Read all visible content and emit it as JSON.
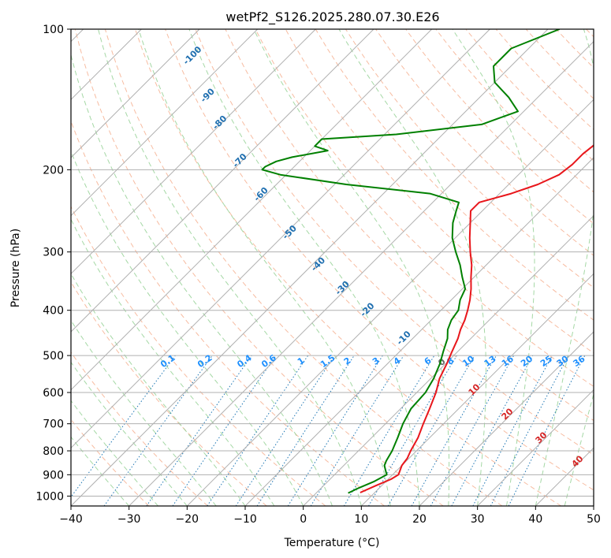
{
  "chart_data": {
    "type": "line",
    "title": "wetPf2_S126.2025.280.07.30.E26",
    "xlabel": "Temperature (°C)",
    "ylabel": "Pressure (hPa)",
    "xlim": [
      -40,
      50
    ],
    "ylim": [
      1050,
      100
    ],
    "y_scale": "log",
    "grid": true,
    "x_ticks": [
      -40,
      -30,
      -20,
      -10,
      0,
      10,
      20,
      30,
      40,
      50
    ],
    "x_tick_labels": [
      "−40",
      "−30",
      "−20",
      "−10",
      "0",
      "10",
      "20",
      "30",
      "40",
      "50"
    ],
    "y_ticks": [
      100,
      200,
      300,
      400,
      500,
      600,
      700,
      800,
      900,
      1000
    ],
    "y_tick_labels": [
      "100",
      "200",
      "300",
      "400",
      "500",
      "600",
      "700",
      "800",
      "900",
      "1000"
    ],
    "series": [
      {
        "color": "#e8161b",
        "pressure": [
          983,
          950,
          920,
          900,
          880,
          860,
          830,
          800,
          750,
          700,
          650,
          600,
          560,
          520,
          490,
          460,
          440,
          420,
          400,
          380,
          360,
          340,
          320,
          300,
          280,
          260,
          245,
          235,
          225,
          215,
          205,
          195,
          185,
          175,
          165,
          150,
          140,
          130,
          120,
          110,
          100
        ],
        "temperature": [
          7.5,
          9,
          10.5,
          11,
          10.5,
          10,
          9.7,
          9,
          8,
          6.5,
          5,
          3.3,
          1.5,
          0.2,
          -1,
          -2.2,
          -3.3,
          -4.2,
          -5.4,
          -6.8,
          -8.5,
          -10.5,
          -12.5,
          -15,
          -17.5,
          -20,
          -22,
          -22,
          -18,
          -15,
          -13,
          -12.5,
          -12.5,
          -12,
          -11.5,
          -9,
          -7,
          -4,
          -2.5,
          -1.5,
          0
        ]
      },
      {
        "color": "#008000",
        "pressure": [
          985,
          960,
          930,
          900,
          880,
          860,
          840,
          800,
          750,
          700,
          650,
          600,
          560,
          520,
          490,
          460,
          440,
          420,
          400,
          380,
          360,
          340,
          320,
          300,
          280,
          260,
          245,
          235,
          225,
          215,
          205,
          200,
          197,
          192,
          188,
          182,
          178,
          172,
          168,
          160,
          150,
          140,
          130,
          120,
          110,
          100
        ],
        "temperature": [
          5.5,
          6.5,
          8,
          9,
          8,
          7,
          6.5,
          5.8,
          4.5,
          3,
          1.8,
          1.5,
          0.5,
          -1,
          -2.5,
          -4,
          -5.5,
          -6.5,
          -7,
          -8.5,
          -9.5,
          -12,
          -14.5,
          -17.5,
          -20.5,
          -23,
          -24.5,
          -25.5,
          -32,
          -48,
          -61,
          -65,
          -65,
          -64,
          -62,
          -57,
          -60,
          -60,
          -48,
          -35,
          -31,
          -35,
          -40,
          -43,
          -43,
          -38
        ]
      }
    ],
    "reference_lines": {
      "mixing_ratio_labels": [
        "0.1",
        "0.2",
        "0.4",
        "0.6",
        "1",
        "1.5",
        "2",
        "3",
        "4",
        "6",
        "8",
        "10",
        "13",
        "16",
        "20",
        "25",
        "30",
        "36"
      ],
      "dry_adiabat_labels": [
        "-100",
        "-90",
        "-80",
        "-70",
        "-60",
        "-50",
        "-40",
        "-30",
        "-20",
        "-10"
      ],
      "moist_adiabat_labels": [
        "0",
        "10",
        "20",
        "30",
        "40"
      ]
    },
    "colors": {
      "isotherm": "#b0b0b0",
      "dry_adiabat": "#f4a582",
      "moist_adiabat": "#8fce8f",
      "mixing_ratio": "#1f77b4",
      "dry_adiabat_label": "#1f6fb0",
      "moist_adiabat_label": "#d62728",
      "zero_label": "#666666",
      "mixing_label": "#1e90ff"
    }
  }
}
